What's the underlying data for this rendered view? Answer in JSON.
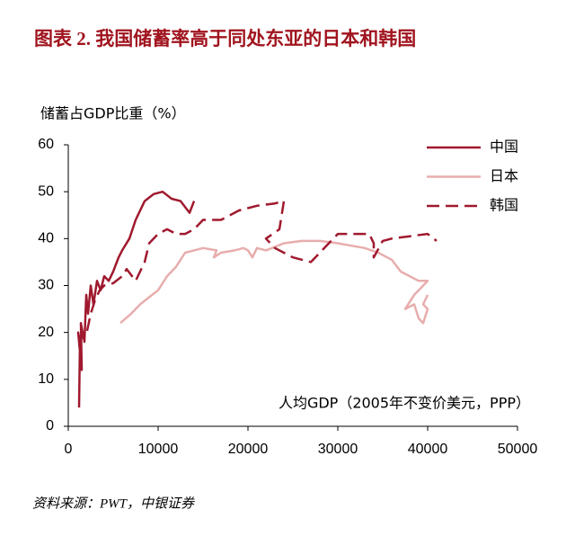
{
  "chart_data": {
    "type": "line",
    "title": "图表 2. 我国储蓄率高于同处东亚的日本和韩国",
    "y_label": "储蓄占GDP比重（%）",
    "x_label": "人均GDP（2005年不变价美元，PPP）",
    "source": "资料来源：PWT，中银证券",
    "xlim": [
      0,
      50000
    ],
    "xticks": [
      0,
      10000,
      20000,
      30000,
      40000,
      50000
    ],
    "ylim": [
      0,
      60
    ],
    "yticks": [
      0,
      10,
      20,
      30,
      40,
      50,
      60
    ],
    "grid": false,
    "legend": "upper right",
    "series": [
      {
        "name": "中国",
        "color": "#a0192e",
        "line_style": "solid",
        "x": [
          1200,
          1300,
          1100,
          1500,
          1400,
          1800,
          2000,
          2200,
          2500,
          2800,
          3200,
          3600,
          4000,
          4500,
          5000,
          5600,
          6000,
          6800,
          7500,
          8500,
          9500,
          10500,
          11500,
          12500,
          13500,
          14000
        ],
        "values": [
          4,
          18,
          20,
          12,
          22,
          18,
          28,
          24,
          30,
          26,
          31,
          29,
          32,
          31,
          33,
          36,
          37.5,
          40,
          44,
          48,
          49.5,
          50,
          48.5,
          48,
          45.5,
          48
        ]
      },
      {
        "name": "日本",
        "color": "#e8adad",
        "line_style": "solid",
        "x": [
          5800,
          7000,
          8000,
          9000,
          10000,
          11000,
          12000,
          13000,
          14000,
          15000,
          16500,
          16200,
          17000,
          18500,
          19500,
          20000,
          20500,
          21000,
          22000,
          24000,
          26000,
          28000,
          30000,
          31500,
          33000,
          34500,
          36000,
          37000,
          38000,
          39000,
          40000,
          39000,
          38500,
          37500,
          38500,
          39000,
          39500,
          40000,
          39500,
          40000
        ],
        "values": [
          22,
          24,
          26,
          27.5,
          29,
          32,
          34,
          37,
          37.5,
          38,
          37.5,
          36,
          37,
          37.5,
          38,
          37.5,
          36,
          38,
          37.5,
          39,
          39.5,
          39.5,
          39,
          38.5,
          38,
          37,
          35.5,
          33,
          32,
          31,
          31,
          29,
          28,
          25,
          26,
          23,
          22,
          25,
          26,
          28
        ]
      },
      {
        "name": "韩国",
        "color": "#a0192e",
        "line_style": "dashed",
        "x": [
          1200,
          1500,
          2000,
          2500,
          3000,
          3500,
          4000,
          5000,
          6000,
          6500,
          7500,
          8500,
          9000,
          10000,
          11000,
          12000,
          13000,
          14000,
          15000,
          17000,
          19000,
          21000,
          23000,
          24000,
          23500,
          22000,
          23000,
          24000,
          25000,
          27000,
          28000,
          29000,
          30000,
          32000,
          33500,
          34000,
          34000,
          35000,
          36000,
          38000,
          40000,
          41000
        ],
        "values": [
          17,
          19,
          19.5,
          24,
          27,
          29,
          30,
          30.5,
          32,
          33.5,
          31,
          35,
          39,
          41,
          42,
          41,
          41,
          42,
          44,
          44,
          46,
          47,
          47.5,
          48,
          42,
          40,
          38,
          37,
          36,
          35,
          37,
          39,
          41,
          41,
          41,
          39,
          36,
          39.5,
          40,
          40.5,
          41,
          39.5
        ]
      }
    ]
  }
}
